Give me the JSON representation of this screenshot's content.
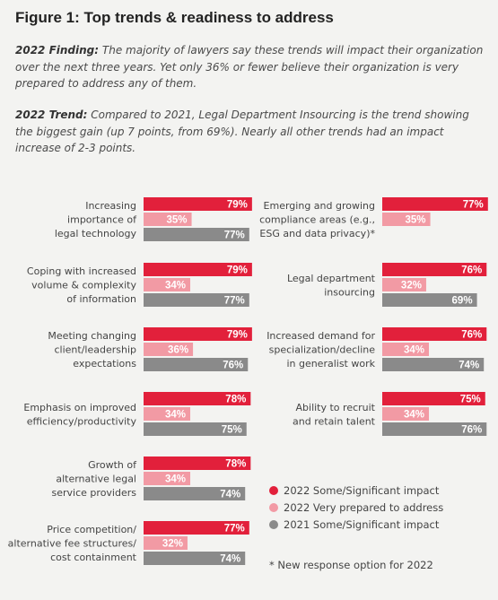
{
  "title": "Figure 1: Top trends & readiness to address",
  "finding": {
    "label": "2022 Finding:",
    "text": " The majority of lawyers say these trends will impact their organization over the next three years. Yet only 36% or fewer believe their organization is very prepared to address any of them."
  },
  "trend": {
    "label": "2022 Trend:",
    "text": " Compared to 2021, Legal Department Insourcing is the trend showing the biggest gain (up 7 points, from 69%). Nearly all other trends had an impact increase of 2-3 points."
  },
  "colors": {
    "impact_2022": "#e2203b",
    "prepared_2022": "#f29aa4",
    "impact_2021": "#8a8a8a"
  },
  "chart_data": {
    "type": "bar",
    "orientation": "horizontal",
    "value_unit": "%",
    "series": [
      {
        "name": "2022 Some/Significant impact",
        "color": "#e2203b"
      },
      {
        "name": "2022 Very prepared to address",
        "color": "#f29aa4"
      },
      {
        "name": "2021 Some/Significant impact",
        "color": "#8a8a8a"
      }
    ],
    "groups": [
      {
        "label": [
          "Increasing",
          "importance of",
          "legal technology"
        ],
        "values": [
          79,
          35,
          77
        ]
      },
      {
        "label": [
          "Coping with increased",
          "volume & complexity",
          "of information"
        ],
        "values": [
          79,
          34,
          77
        ]
      },
      {
        "label": [
          "Meeting changing",
          "client/leadership",
          "expectations"
        ],
        "values": [
          79,
          36,
          76
        ]
      },
      {
        "label": [
          "Emphasis on improved",
          "efficiency/productivity"
        ],
        "values": [
          78,
          34,
          75
        ]
      },
      {
        "label": [
          "Growth of",
          "alternative legal",
          "service providers"
        ],
        "values": [
          78,
          34,
          74
        ]
      },
      {
        "label": [
          "Price competition/",
          "alternative fee structures/",
          "cost containment"
        ],
        "values": [
          77,
          32,
          74
        ]
      },
      {
        "label": [
          "Emerging and growing",
          "compliance areas (e.g.,",
          "ESG and data privacy)*"
        ],
        "values": [
          77,
          35,
          null
        ]
      },
      {
        "label": [
          "Legal department",
          "insourcing"
        ],
        "values": [
          76,
          32,
          69
        ]
      },
      {
        "label": [
          "Increased demand for",
          "specialization/decline",
          "in generalist work"
        ],
        "values": [
          76,
          34,
          74
        ]
      },
      {
        "label": [
          "Ability to recruit",
          "and retain talent"
        ],
        "values": [
          75,
          34,
          76
        ]
      }
    ]
  },
  "legend": [
    "2022 Some/Significant impact",
    "2022 Very prepared to address",
    "2021 Some/Significant impact"
  ],
  "footnote": "* New response option for 2022"
}
